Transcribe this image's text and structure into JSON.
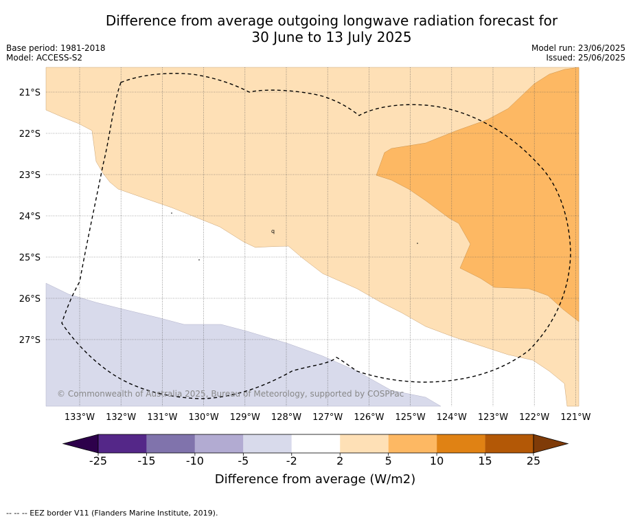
{
  "header": {
    "title_line1": "Difference from average outgoing longwave radiation forecast for",
    "title_line2": "30 June to 13 July 2025",
    "base_period": "Base period: 1981-2018",
    "model": "Model: ACCESS-S2",
    "model_run": "Model run: 23/06/2025",
    "issued": "Issued: 25/06/2025"
  },
  "map": {
    "lon_labels": [
      "133°W",
      "132°W",
      "131°W",
      "130°W",
      "129°W",
      "128°W",
      "127°W",
      "126°W",
      "125°W",
      "124°W",
      "123°W",
      "122°W",
      "121°W"
    ],
    "lat_labels": [
      "21°S",
      "22°S",
      "23°S",
      "24°S",
      "25°S",
      "26°S",
      "27°S"
    ],
    "copyright": "© Commonwealth of Australia 2025, Bureau of Meteorology, supported by COSPPac",
    "eez_border": "dashed"
  },
  "colorbar": {
    "ticks": [
      "-25",
      "-15",
      "-10",
      "-5",
      "-2",
      "2",
      "5",
      "10",
      "15",
      "25"
    ],
    "colors": [
      "#542788",
      "#8073ac",
      "#b2abd2",
      "#d8daeb",
      "#ffffff",
      "#fee0b6",
      "#fdb863",
      "#e08214",
      "#b35806"
    ],
    "under_color": "#2d004b",
    "over_color": "#7f3b08",
    "label": "Difference from average (W/m2)"
  },
  "footer": {
    "legend_text": "--  --  -- EEZ border V11 (Flanders Marine Institute, 2019)."
  }
}
